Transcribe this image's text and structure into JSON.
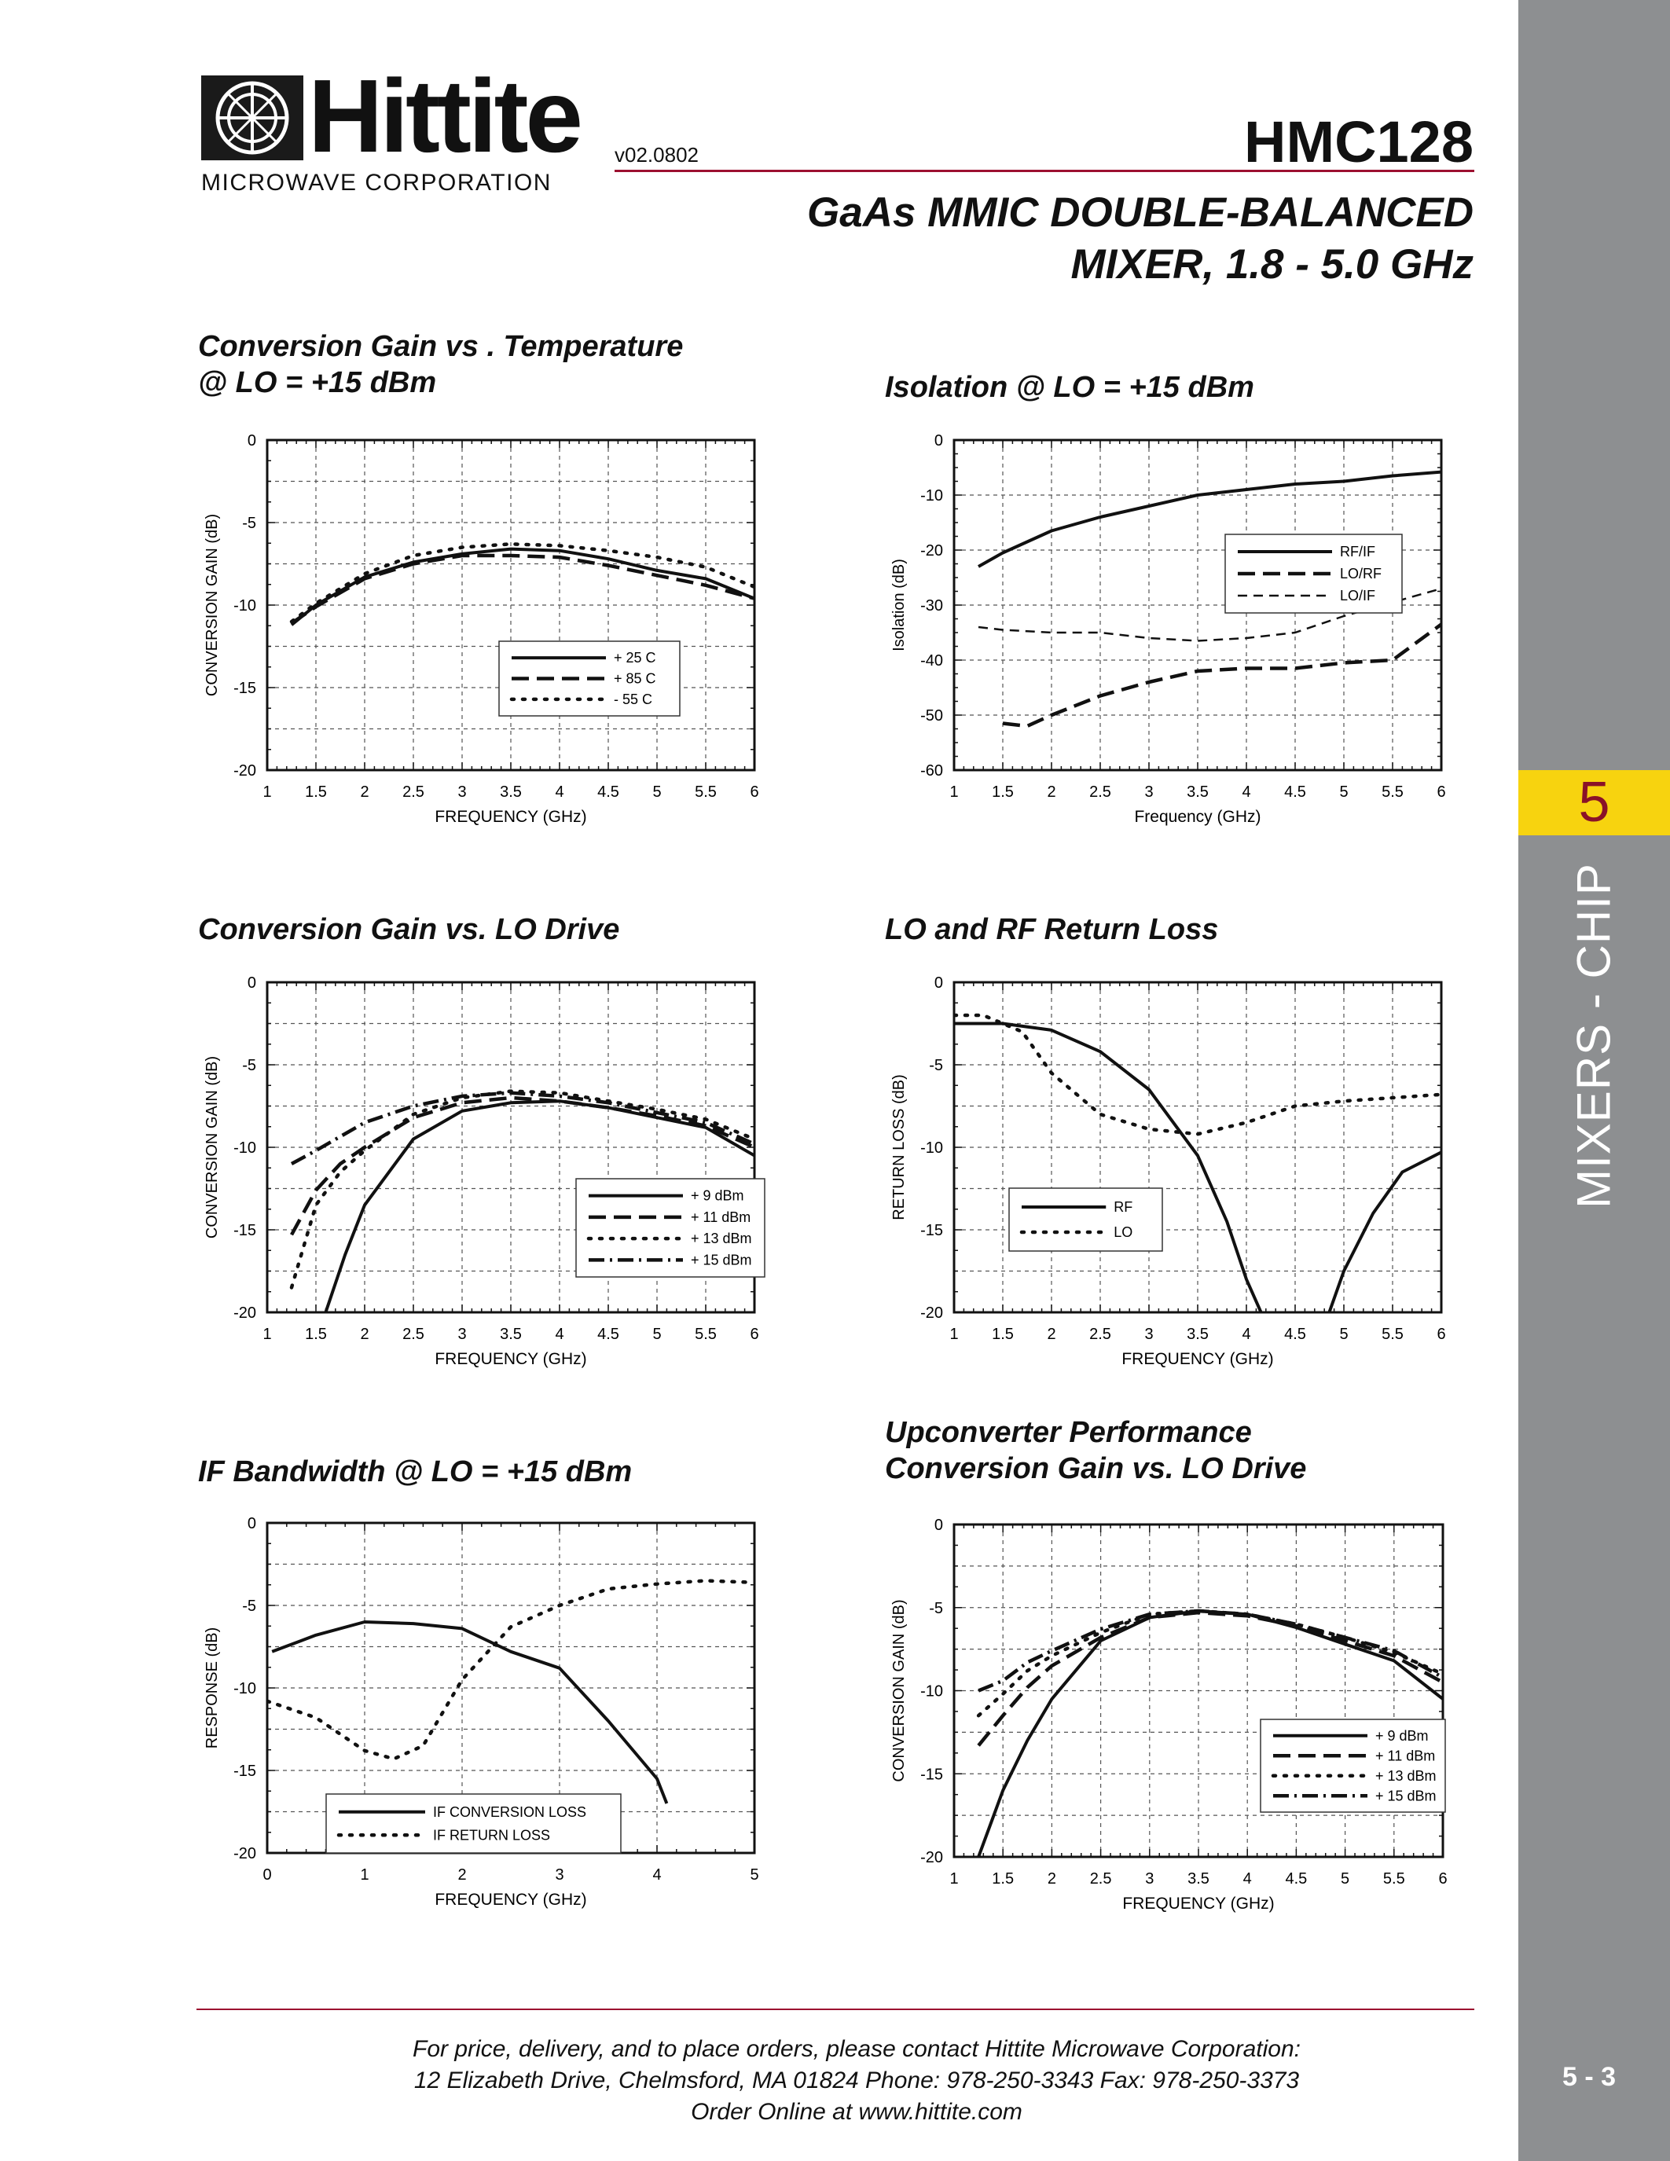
{
  "header": {
    "brand": "Hittite",
    "brand_sub": "MICROWAVE CORPORATION",
    "version": "v02.0802",
    "part_number": "HMC128",
    "subtitle_line1": "GaAs MMIC DOUBLE-BALANCED",
    "subtitle_line2": "MIXER, 1.8 - 5.0 GHz"
  },
  "sidebar": {
    "tab_number": "5",
    "section": "MIXERS - CHIP",
    "page_number": "5 - 3"
  },
  "footer": {
    "line1": "For price, delivery, and to place orders, please contact Hittite Microwave Corporation:",
    "line2": "12 Elizabeth Drive, Chelmsford, MA 01824 Phone: 978-250-3343  Fax: 978-250-3373",
    "line3": "Order Online at www.hittite.com"
  },
  "chart_data": [
    {
      "id": "c1",
      "type": "line",
      "title_lines": [
        "Conversion Gain vs . Temperature",
        "@ LO = +15 dBm"
      ],
      "xlabel": "FREQUENCY (GHz)",
      "ylabel": "CONVERSION GAIN (dB)",
      "xlim": [
        1,
        6
      ],
      "ylim": [
        -20,
        0
      ],
      "xticks": [
        "1",
        "1.5",
        "2",
        "2.5",
        "3",
        "3.5",
        "4",
        "4.5",
        "5",
        "5.5",
        "6"
      ],
      "yticks": [
        "0",
        "-5",
        "-10",
        "-15",
        "-20"
      ],
      "grid": true,
      "legend_position": "center-bottom",
      "series": [
        {
          "name": "+ 25 C",
          "style": "solid",
          "x": [
            1.25,
            1.5,
            2,
            2.5,
            3,
            3.5,
            4,
            4.5,
            5,
            5.5,
            6
          ],
          "y": [
            -11.2,
            -10,
            -8.3,
            -7.4,
            -6.9,
            -6.6,
            -6.7,
            -7.2,
            -7.9,
            -8.4,
            -9.6
          ]
        },
        {
          "name": "+ 85 C",
          "style": "dash",
          "x": [
            1.25,
            1.5,
            2,
            2.5,
            3,
            3.5,
            4,
            4.5,
            5,
            5.5,
            6
          ],
          "y": [
            -11.1,
            -10.1,
            -8.4,
            -7.5,
            -7,
            -7,
            -7.1,
            -7.6,
            -8.2,
            -8.8,
            -9.6
          ]
        },
        {
          "name": "- 55 C",
          "style": "dot",
          "x": [
            1.25,
            1.5,
            2,
            2.5,
            3,
            3.5,
            4,
            4.5,
            5,
            5.5,
            6
          ],
          "y": [
            -11,
            -9.9,
            -8.1,
            -7,
            -6.5,
            -6.3,
            -6.4,
            -6.7,
            -7.1,
            -7.7,
            -8.9
          ]
        }
      ]
    },
    {
      "id": "c2",
      "type": "line",
      "title_lines": [
        "Isolation @ LO = +15 dBm"
      ],
      "xlabel": "Frequency (GHz)",
      "ylabel": "Isolation (dB)",
      "xlim": [
        1,
        6
      ],
      "ylim": [
        -60,
        0
      ],
      "xticks": [
        "1",
        "1.5",
        "2",
        "2.5",
        "3",
        "3.5",
        "4",
        "4.5",
        "5",
        "5.5",
        "6"
      ],
      "yticks": [
        "0",
        "-10",
        "-20",
        "-30",
        "-40",
        "-50",
        "-60"
      ],
      "grid": true,
      "legend_position": "top-right",
      "series": [
        {
          "name": "RF/IF",
          "style": "solid",
          "x": [
            1.25,
            1.5,
            2,
            2.5,
            3,
            3.5,
            4,
            4.5,
            5,
            5.5,
            6
          ],
          "y": [
            -23,
            -20.5,
            -16.5,
            -14,
            -12,
            -10,
            -9,
            -8,
            -7.5,
            -6.5,
            -5.8
          ]
        },
        {
          "name": "LO/RF",
          "style": "dash",
          "x": [
            1.5,
            1.75,
            2,
            2.5,
            3,
            3.5,
            4,
            4.5,
            5,
            5.5,
            6
          ],
          "y": [
            -51.5,
            -52,
            -50,
            -46.5,
            -44,
            -42,
            -41.5,
            -41.5,
            -40.5,
            -40,
            -33.5
          ]
        },
        {
          "name": "LO/IF",
          "style": "dashthin",
          "x": [
            1.25,
            1.5,
            2,
            2.5,
            3,
            3.5,
            4,
            4.5,
            5,
            5.5,
            6
          ],
          "y": [
            -34,
            -34.5,
            -35,
            -35,
            -36,
            -36.5,
            -36,
            -35,
            -32,
            -29.5,
            -27
          ]
        }
      ]
    },
    {
      "id": "c3",
      "type": "line",
      "title_lines": [
        "Conversion Gain vs. LO Drive"
      ],
      "xlabel": "FREQUENCY (GHz)",
      "ylabel": "CONVERSION GAIN (dB)",
      "xlim": [
        1,
        6
      ],
      "ylim": [
        -20,
        0
      ],
      "xticks": [
        "1",
        "1.5",
        "2",
        "2.5",
        "3",
        "3.5",
        "4",
        "4.5",
        "5",
        "5.5",
        "6"
      ],
      "yticks": [
        "0",
        "-5",
        "-10",
        "-15",
        "-20"
      ],
      "grid": true,
      "legend_position": "bottom-right",
      "series": [
        {
          "name": "+ 9 dBm",
          "style": "solid",
          "x": [
            1.6,
            1.8,
            2,
            2.5,
            3,
            3.5,
            4,
            4.5,
            5,
            5.5,
            6
          ],
          "y": [
            -20,
            -16.5,
            -13.5,
            -9.5,
            -7.8,
            -7.3,
            -7.2,
            -7.6,
            -8.2,
            -8.8,
            -10.5
          ]
        },
        {
          "name": "+ 11 dBm",
          "style": "dash",
          "x": [
            1.25,
            1.5,
            1.75,
            2,
            2.5,
            3,
            3.5,
            4,
            4.5,
            5,
            5.5,
            6
          ],
          "y": [
            -15.3,
            -12.6,
            -11,
            -10,
            -8.2,
            -7.3,
            -7,
            -7.2,
            -7.6,
            -8.1,
            -8.7,
            -10
          ]
        },
        {
          "name": "+ 13 dBm",
          "style": "dot",
          "x": [
            1.25,
            1.5,
            1.75,
            2,
            2.5,
            3,
            3.5,
            4,
            4.5,
            5,
            5.5,
            6
          ],
          "y": [
            -18.5,
            -13.5,
            -11.5,
            -10.2,
            -8,
            -7,
            -6.6,
            -6.7,
            -7.2,
            -7.7,
            -8.3,
            -9.5
          ]
        },
        {
          "name": "+ 15 dBm",
          "style": "dashdot",
          "x": [
            1.25,
            1.5,
            2,
            2.5,
            3,
            3.5,
            4,
            4.5,
            5,
            5.5,
            6
          ],
          "y": [
            -11,
            -10.2,
            -8.5,
            -7.5,
            -6.9,
            -6.7,
            -6.9,
            -7.3,
            -7.9,
            -8.5,
            -9.8
          ]
        }
      ]
    },
    {
      "id": "c4",
      "type": "line",
      "title_lines": [
        "LO and RF Return Loss"
      ],
      "xlabel": "FREQUENCY (GHz)",
      "ylabel": "RETURN LOSS (dB)",
      "xlim": [
        1,
        6
      ],
      "ylim": [
        -20,
        0
      ],
      "xticks": [
        "1",
        "1.5",
        "2",
        "2.5",
        "3",
        "3.5",
        "4",
        "4.5",
        "5",
        "5.5",
        "6"
      ],
      "yticks": [
        "0",
        "-5",
        "-10",
        "-15",
        "-20"
      ],
      "grid": true,
      "legend_position": "center-bottom",
      "series": [
        {
          "name": "RF",
          "style": "solid",
          "x": [
            1,
            1.5,
            2,
            2.5,
            3,
            3.5,
            3.8,
            4,
            4.15
          ],
          "y": [
            -2.5,
            -2.5,
            -2.9,
            -4.2,
            -6.5,
            -10.5,
            -14.5,
            -18,
            -20
          ],
          "x2": [
            4.85,
            5,
            5.3,
            5.6,
            6
          ],
          "y2": [
            -20,
            -17.5,
            -14,
            -11.5,
            -10.3
          ]
        },
        {
          "name": "LO",
          "style": "dot",
          "x": [
            1,
            1.3,
            1.7,
            2,
            2.5,
            3,
            3.5,
            4,
            4.5,
            5,
            5.5,
            6
          ],
          "y": [
            -2,
            -2,
            -3,
            -5.5,
            -8,
            -8.9,
            -9.2,
            -8.5,
            -7.5,
            -7.2,
            -7,
            -6.8
          ]
        }
      ]
    },
    {
      "id": "c5",
      "type": "line",
      "title_lines": [
        "IF Bandwidth @ LO = +15 dBm"
      ],
      "xlabel": "FREQUENCY (GHz)",
      "ylabel": "RESPONSE (dB)",
      "xlim": [
        0,
        5
      ],
      "ylim": [
        -20,
        0
      ],
      "xticks": [
        "0",
        "1",
        "2",
        "3",
        "4",
        "5"
      ],
      "yticks": [
        "0",
        "-5",
        "-10",
        "-15",
        "-20"
      ],
      "grid": true,
      "legend_position": "bottom-left",
      "series": [
        {
          "name": "IF CONVERSION LOSS",
          "style": "solid",
          "x": [
            0.05,
            0.5,
            1,
            1.5,
            2,
            2.5,
            3,
            3.5,
            4,
            4.1
          ],
          "y": [
            -7.8,
            -6.8,
            -6,
            -6.1,
            -6.4,
            -7.8,
            -8.8,
            -12,
            -15.5,
            -17
          ]
        },
        {
          "name": "IF RETURN LOSS",
          "style": "dot",
          "x": [
            0,
            0.5,
            1,
            1.3,
            1.6,
            2,
            2.5,
            3,
            3.5,
            4,
            4.5,
            4.95
          ],
          "y": [
            -10.8,
            -11.8,
            -13.8,
            -14.3,
            -13.5,
            -9.5,
            -6.3,
            -5,
            -4,
            -3.7,
            -3.5,
            -3.6
          ]
        }
      ]
    },
    {
      "id": "c6",
      "type": "line",
      "title_lines": [
        "Upconverter Performance",
        "Conversion Gain vs. LO Drive"
      ],
      "xlabel": "FREQUENCY (GHz)",
      "ylabel": "CONVERSION GAIN (dB)",
      "xlim": [
        1,
        6
      ],
      "ylim": [
        -20,
        0
      ],
      "xticks": [
        "1",
        "1.5",
        "2",
        "2.5",
        "3",
        "3.5",
        "4",
        "4.5",
        "5",
        "5.5",
        "6"
      ],
      "yticks": [
        "0",
        "-5",
        "-10",
        "-15",
        "-20"
      ],
      "grid": true,
      "legend_position": "bottom-right",
      "series": [
        {
          "name": "+ 9 dBm",
          "style": "solid",
          "x": [
            1.25,
            1.5,
            1.75,
            2,
            2.5,
            3,
            3.5,
            4,
            4.5,
            5,
            5.5,
            6
          ],
          "y": [
            -20,
            -16,
            -13,
            -10.5,
            -7,
            -5.6,
            -5.2,
            -5.4,
            -6.2,
            -7.2,
            -8.2,
            -10.5
          ]
        },
        {
          "name": "+ 11 dBm",
          "style": "dash",
          "x": [
            1.25,
            1.5,
            1.75,
            2,
            2.5,
            3,
            3.5,
            4,
            4.5,
            5,
            5.5,
            6
          ],
          "y": [
            -13.3,
            -11.5,
            -9.8,
            -8.5,
            -6.8,
            -5.6,
            -5.3,
            -5.5,
            -6.1,
            -7,
            -7.9,
            -9.5
          ]
        },
        {
          "name": "+ 13 dBm",
          "style": "dot",
          "x": [
            1.25,
            1.5,
            1.75,
            2,
            2.5,
            3,
            3.5,
            4,
            4.5,
            5,
            5.5,
            6
          ],
          "y": [
            -11.5,
            -10.2,
            -8.8,
            -7.9,
            -6.5,
            -5.4,
            -5.2,
            -5.4,
            -6,
            -6.8,
            -7.7,
            -9
          ]
        },
        {
          "name": "+ 15 dBm",
          "style": "dashdot",
          "x": [
            1.25,
            1.5,
            1.75,
            2,
            2.5,
            3,
            3.5,
            4,
            4.5,
            5,
            5.5,
            6
          ],
          "y": [
            -10,
            -9.4,
            -8.3,
            -7.6,
            -6.3,
            -5.4,
            -5.2,
            -5.4,
            -6,
            -6.8,
            -7.6,
            -9.2
          ]
        }
      ]
    }
  ]
}
